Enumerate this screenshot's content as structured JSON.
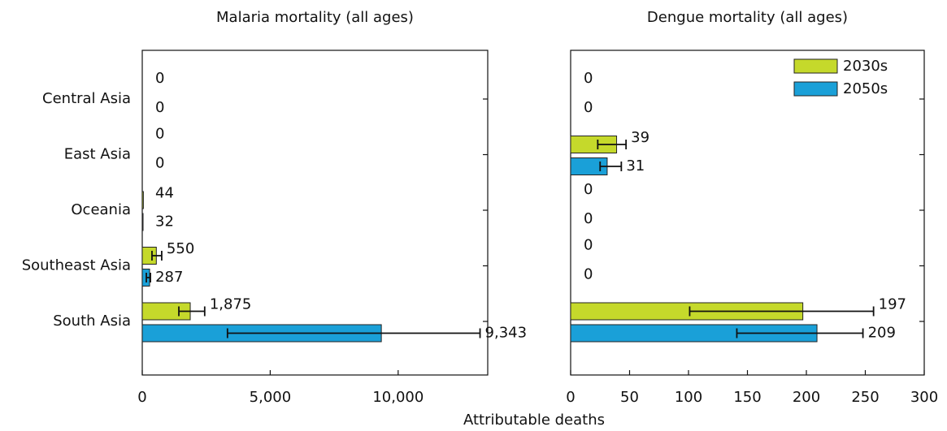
{
  "x_label": "Attributable deaths",
  "chart_data": [
    {
      "type": "bar",
      "orientation": "horizontal",
      "title": "Malaria mortality (all ages)",
      "categories": [
        "Central Asia",
        "East Asia",
        "Oceania",
        "Southeast Asia",
        "South Asia"
      ],
      "series": [
        {
          "color": "#c5d92b",
          "values": [
            0,
            0,
            44,
            550,
            1875
          ],
          "value_labels": [
            "0",
            "0",
            "44",
            "550",
            "1,875"
          ],
          "ci_low": [
            null,
            null,
            null,
            380,
            1430
          ],
          "ci_high": [
            null,
            null,
            null,
            760,
            2440
          ]
        },
        {
          "color": "#1aa0d8",
          "values": [
            0,
            0,
            32,
            287,
            9343
          ],
          "value_labels": [
            "0",
            "0",
            "32",
            "287",
            "9,343"
          ],
          "ci_low": [
            null,
            null,
            null,
            160,
            3330
          ],
          "ci_high": [
            null,
            null,
            null,
            320,
            13200
          ]
        }
      ],
      "xlim": [
        0,
        13500
      ],
      "xticks": [
        0,
        {
          "value": 5000,
          "label": "5,000"
        },
        {
          "value": 10000,
          "label": "10,000"
        }
      ]
    },
    {
      "type": "bar",
      "orientation": "horizontal",
      "title": "Dengue mortality (all ages)",
      "series": [
        {
          "name": "2030s",
          "color": "#c5d92b",
          "values": [
            0,
            39,
            0,
            0,
            197
          ],
          "ci_low": [
            null,
            23,
            null,
            null,
            101
          ],
          "ci_high": [
            null,
            47,
            null,
            null,
            257
          ]
        },
        {
          "name": "2050s",
          "color": "#1aa0d8",
          "values": [
            0,
            31,
            0,
            0,
            209
          ],
          "ci_low": [
            null,
            25,
            null,
            null,
            141
          ],
          "ci_high": [
            null,
            43,
            null,
            null,
            248
          ]
        }
      ],
      "xlim": [
        0,
        300
      ],
      "xticks": [
        0,
        50,
        100,
        150,
        200,
        250,
        300
      ],
      "legend": "upper right"
    }
  ]
}
